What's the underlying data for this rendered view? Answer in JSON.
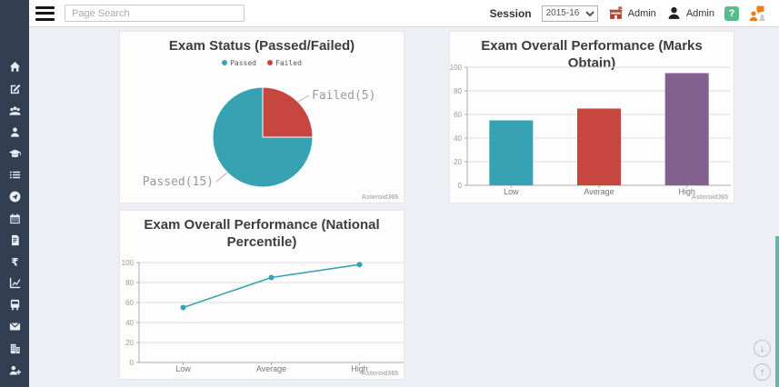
{
  "header": {
    "search_placeholder": "Page Search",
    "session_label": "Session",
    "session_value": "2015-16",
    "school_admin_label": "Admin",
    "user_admin_label": "Admin",
    "help_label": "?"
  },
  "sidebar": {
    "items": [
      "home",
      "edit",
      "users",
      "user",
      "graduation",
      "list",
      "globe",
      "calendar",
      "receipt",
      "rupee",
      "chart",
      "bus",
      "mail",
      "building",
      "user-add"
    ]
  },
  "watermark": "Asteroid365",
  "icons": {
    "scroll_down": "↓",
    "scroll_up": "↑"
  },
  "chart_data": [
    {
      "type": "pie",
      "title": "Exam Status (Passed/Failed)",
      "legend_position": "top",
      "labels": [
        "Passed",
        "Failed"
      ],
      "values": [
        15,
        5
      ],
      "colors": [
        "#36a2b2",
        "#c7463f"
      ],
      "annotations": [
        "Passed(15)",
        "Failed(5)"
      ],
      "total": 20
    },
    {
      "type": "bar",
      "title": "Exam Overall Performance (Marks Obtain)",
      "categories": [
        "Low",
        "Average",
        "High"
      ],
      "values": [
        55,
        65,
        95
      ],
      "colors": [
        "#36a2b2",
        "#c7463f",
        "#82618f"
      ],
      "xlabel": "",
      "ylabel": "",
      "ylim": [
        0,
        100
      ],
      "yticks": [
        0,
        20,
        40,
        60,
        80,
        100
      ],
      "grid": true
    },
    {
      "type": "line",
      "title": "Exam Overall Performance (National Percentile)",
      "categories": [
        "Low",
        "Average",
        "High"
      ],
      "values": [
        55,
        85,
        98
      ],
      "color": "#36a2b2",
      "xlabel": "",
      "ylabel": "",
      "ylim": [
        0,
        100
      ],
      "yticks": [
        0,
        20,
        40,
        60,
        80,
        100
      ],
      "grid": true
    }
  ]
}
